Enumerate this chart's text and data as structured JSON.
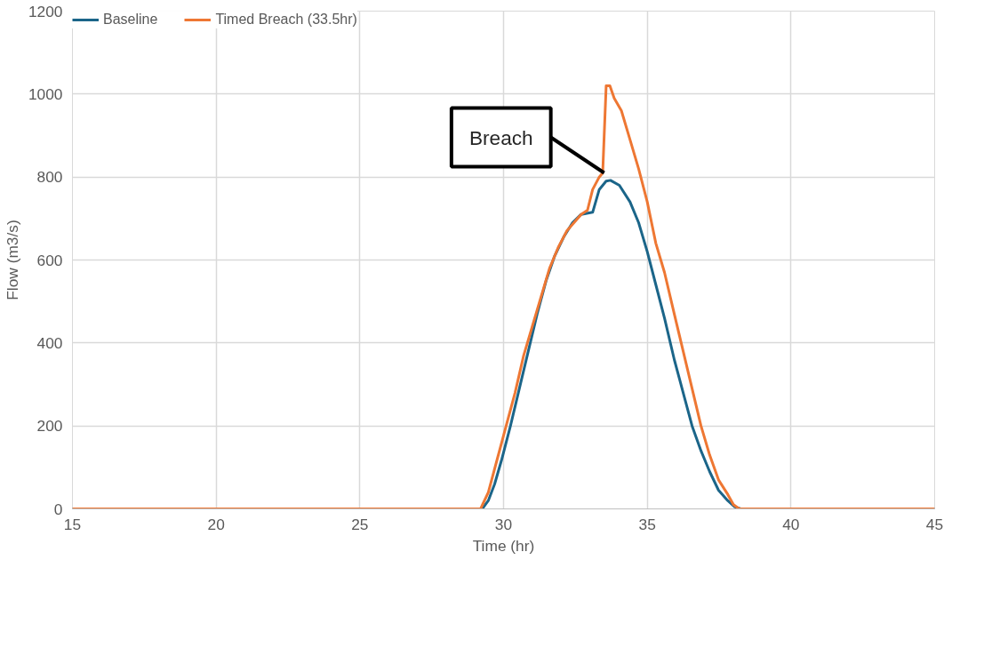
{
  "chart_data": {
    "type": "line",
    "xlabel": "Time (hr)",
    "ylabel": "Flow (m3/s)",
    "xlim": [
      15,
      45
    ],
    "xticks": [
      15,
      20,
      25,
      30,
      35,
      40,
      45
    ],
    "ylim": [
      0,
      1200
    ],
    "yticks": [
      0,
      200,
      400,
      600,
      800,
      1000,
      1200
    ],
    "grid": true,
    "legend": "top left",
    "marker": "none",
    "line_style": "solid",
    "series": [
      {
        "name": "Baseline",
        "color": "#1b6589",
        "x": [
          15,
          29.26,
          29.47,
          29.69,
          29.94,
          30.24,
          30.55,
          30.86,
          31.17,
          31.48,
          31.78,
          32.09,
          32.4,
          32.7,
          33.1,
          33.33,
          33.57,
          33.72,
          34.03,
          34.4,
          34.7,
          35.0,
          35.3,
          35.6,
          35.94,
          36.25,
          36.56,
          36.87,
          37.17,
          37.48,
          37.8,
          38.04,
          38.25,
          45
        ],
        "values": [
          0,
          0,
          20,
          60,
          120,
          200,
          290,
          380,
          470,
          550,
          610,
          655,
          690,
          710,
          715,
          770,
          790,
          792,
          780,
          740,
          690,
          620,
          540,
          460,
          360,
          280,
          200,
          140,
          90,
          45,
          20,
          5,
          0,
          0
        ]
      },
      {
        "name": "Timed Breach (33.5hr)",
        "color": "#ee7733",
        "x": [
          15,
          29.2,
          29.47,
          29.78,
          30.09,
          30.4,
          30.7,
          31.0,
          31.3,
          31.6,
          31.9,
          32.2,
          32.7,
          32.92,
          33.1,
          33.33,
          33.45,
          33.57,
          33.7,
          33.85,
          34.1,
          34.4,
          34.7,
          35.0,
          35.3,
          35.6,
          35.94,
          36.25,
          36.56,
          36.87,
          37.17,
          37.48,
          37.8,
          38.0,
          38.2,
          45
        ],
        "values": [
          0,
          0,
          40,
          120,
          200,
          280,
          370,
          440,
          510,
          580,
          630,
          670,
          710,
          720,
          770,
          800,
          810,
          1020,
          1020,
          990,
          960,
          890,
          820,
          740,
          640,
          570,
          470,
          380,
          290,
          200,
          130,
          70,
          35,
          10,
          0,
          0
        ]
      }
    ],
    "annotations": [
      {
        "text": "Breach",
        "x": 33.5,
        "y": 810
      }
    ]
  }
}
